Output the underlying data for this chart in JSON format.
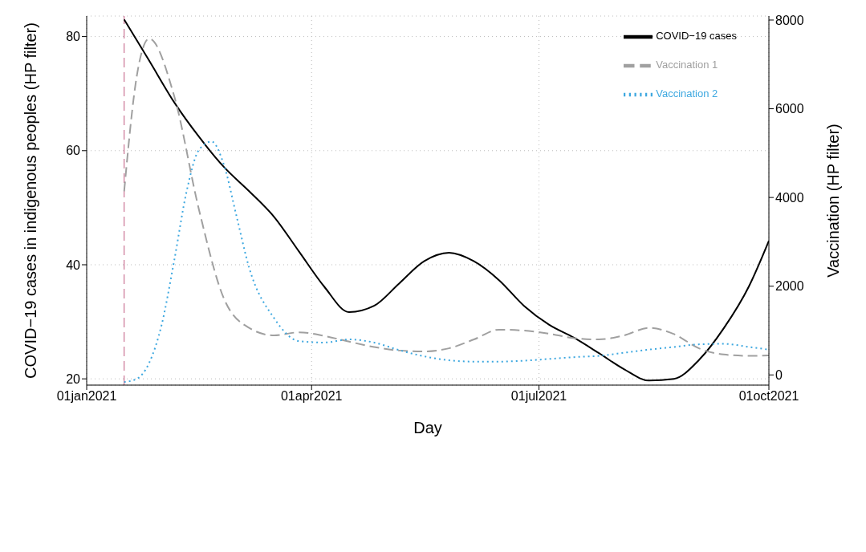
{
  "chart_data": {
    "type": "line",
    "xlabel": "Day",
    "ylabel": "COVID−19 cases in indigenous peoples (HP filter)",
    "y2label": "Vaccination (HP filter)",
    "xlim": [
      "2021-01-01",
      "2021-10-01"
    ],
    "xticks": [
      {
        "value": "2021-01-01",
        "label": "01jan2021"
      },
      {
        "value": "2021-04-01",
        "label": "01apr2021"
      },
      {
        "value": "2021-07-01",
        "label": "01jul2021"
      },
      {
        "value": "2021-10-01",
        "label": "01oct2021"
      }
    ],
    "ylim": [
      18.9,
      83.6
    ],
    "yticks": [
      20,
      40,
      60,
      80
    ],
    "y2lim": [
      -230,
      8090
    ],
    "y2ticks": [
      0,
      2000,
      4000,
      6000,
      8000
    ],
    "grid": true,
    "legend": "top right",
    "marker": "none",
    "ref_lines": [
      {
        "axis": "x",
        "value": "2021-01-16",
        "color": "#c0577f",
        "line_style": "dashed"
      }
    ],
    "series": [
      {
        "name": "COVID−19 cases",
        "color": "#000000",
        "line_style": "solid",
        "x": [
          "2021-01-16",
          "2021-01-26",
          "2021-02-05",
          "2021-02-15",
          "2021-02-25",
          "2021-03-07",
          "2021-03-17",
          "2021-03-27",
          "2021-04-06",
          "2021-04-16",
          "2021-04-26",
          "2021-05-06",
          "2021-05-16",
          "2021-05-26",
          "2021-06-05",
          "2021-06-15",
          "2021-06-25",
          "2021-07-05",
          "2021-07-15",
          "2021-07-25",
          "2021-08-04",
          "2021-08-14",
          "2021-08-24",
          "2021-09-03",
          "2021-09-13",
          "2021-09-23",
          "2021-10-01"
        ],
        "values": [
          83.0,
          75.8,
          68.5,
          62.4,
          57.1,
          52.9,
          48.4,
          42.3,
          36.2,
          31.7,
          32.8,
          36.7,
          40.6,
          42.1,
          40.6,
          37.3,
          32.8,
          29.5,
          27.2,
          24.5,
          21.7,
          19.7,
          20.0,
          23.3,
          28.9,
          36.2,
          44.2
        ]
      },
      {
        "name": "Vaccination 1",
        "color": "#a0a0a0",
        "line_style": "dashed",
        "axis": "y2",
        "x": [
          "2021-01-16",
          "2021-01-21",
          "2021-01-26",
          "2021-02-05",
          "2021-02-15",
          "2021-02-25",
          "2021-03-07",
          "2021-03-17",
          "2021-03-27",
          "2021-04-06",
          "2021-04-16",
          "2021-04-26",
          "2021-05-06",
          "2021-05-16",
          "2021-05-26",
          "2021-06-05",
          "2021-06-15",
          "2021-06-25",
          "2021-07-05",
          "2021-07-15",
          "2021-07-25",
          "2021-08-04",
          "2021-08-14",
          "2021-08-24",
          "2021-09-03",
          "2021-09-13",
          "2021-09-23",
          "2021-10-01"
        ],
        "values": [
          4140,
          6720,
          7580,
          6290,
          3710,
          1710,
          1060,
          890,
          960,
          880,
          750,
          630,
          550,
          530,
          600,
          800,
          1020,
          1000,
          930,
          830,
          800,
          890,
          1060,
          920,
          600,
          460,
          430,
          440
        ]
      },
      {
        "name": "Vaccination 2",
        "color": "#3ea8e0",
        "line_style": "dotted",
        "axis": "y2",
        "x": [
          "2021-01-16",
          "2021-01-21",
          "2021-01-26",
          "2021-01-31",
          "2021-02-05",
          "2021-02-10",
          "2021-02-15",
          "2021-02-20",
          "2021-02-25",
          "2021-03-02",
          "2021-03-07",
          "2021-03-17",
          "2021-03-27",
          "2021-04-06",
          "2021-04-16",
          "2021-04-26",
          "2021-05-06",
          "2021-05-16",
          "2021-05-26",
          "2021-06-05",
          "2021-06-15",
          "2021-06-25",
          "2021-07-05",
          "2021-07-15",
          "2021-07-25",
          "2021-08-04",
          "2021-08-14",
          "2021-08-24",
          "2021-09-03",
          "2021-09-13",
          "2021-09-23",
          "2021-10-01"
        ],
        "values": [
          -160,
          -90,
          270,
          1130,
          2570,
          4140,
          5080,
          5260,
          4720,
          3570,
          2420,
          1280,
          760,
          730,
          800,
          730,
          560,
          420,
          330,
          300,
          300,
          320,
          360,
          400,
          430,
          500,
          570,
          630,
          690,
          700,
          630,
          570
        ]
      }
    ]
  }
}
